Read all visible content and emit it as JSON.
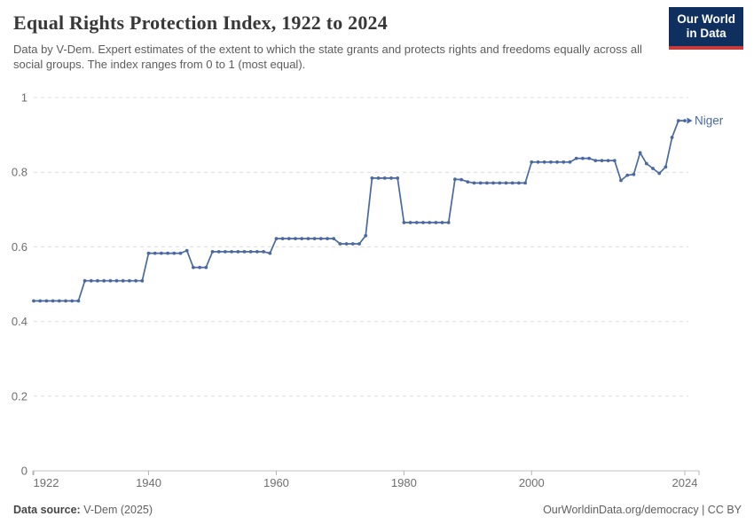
{
  "header": {
    "title": "Equal Rights Protection Index, 1922 to 2024",
    "subtitle": "Data by V-Dem. Expert estimates of the extent to which the state grants and protects rights and freedoms equally across all social groups. The index ranges from 0 to 1 (most equal).",
    "logo": {
      "line1": "Our World",
      "line2": "in Data"
    }
  },
  "footer": {
    "source_label": "Data source:",
    "source_value": " V-Dem (2025)",
    "credit": "OurWorldinData.org/democracy | CC BY"
  },
  "colors": {
    "line": "#4a69a2",
    "grid": "#dedede",
    "axis": "#c2c2c2",
    "tick": "#b5b5b5",
    "tick_label": "#6e6e6e",
    "logo_bg": "#0f2f5f",
    "logo_bar": "#c93a3a"
  },
  "chart_data": {
    "type": "line",
    "title": "Equal Rights Protection Index, 1922 to 2024",
    "xlabel": "",
    "ylabel": "",
    "xlim": [
      1922,
      2024
    ],
    "ylim": [
      0,
      1
    ],
    "xticks": [
      1922,
      1940,
      1960,
      1980,
      2000,
      2024
    ],
    "yticks": [
      0,
      0.2,
      0.4,
      0.6,
      0.8,
      1
    ],
    "grid": "horizontal-dashed",
    "legend_position": "end-of-line-label",
    "x": [
      1922,
      1923,
      1924,
      1925,
      1926,
      1927,
      1928,
      1929,
      1930,
      1931,
      1932,
      1933,
      1934,
      1935,
      1936,
      1937,
      1938,
      1939,
      1940,
      1941,
      1942,
      1943,
      1944,
      1945,
      1946,
      1947,
      1948,
      1949,
      1950,
      1951,
      1952,
      1953,
      1954,
      1955,
      1956,
      1957,
      1958,
      1959,
      1960,
      1961,
      1962,
      1963,
      1964,
      1965,
      1966,
      1967,
      1968,
      1969,
      1970,
      1971,
      1972,
      1973,
      1974,
      1975,
      1976,
      1977,
      1978,
      1979,
      1980,
      1981,
      1982,
      1983,
      1984,
      1985,
      1986,
      1987,
      1988,
      1989,
      1990,
      1991,
      1992,
      1993,
      1994,
      1995,
      1996,
      1997,
      1998,
      1999,
      2000,
      2001,
      2002,
      2003,
      2004,
      2005,
      2006,
      2007,
      2008,
      2009,
      2010,
      2011,
      2012,
      2013,
      2014,
      2015,
      2016,
      2017,
      2018,
      2019,
      2020,
      2021,
      2022,
      2023,
      2024
    ],
    "series": [
      {
        "name": "Niger",
        "color": "#4a69a2",
        "values": [
          0.455,
          0.455,
          0.455,
          0.455,
          0.455,
          0.455,
          0.455,
          0.455,
          0.509,
          0.509,
          0.509,
          0.509,
          0.509,
          0.509,
          0.509,
          0.509,
          0.509,
          0.509,
          0.583,
          0.583,
          0.583,
          0.583,
          0.583,
          0.583,
          0.59,
          0.545,
          0.545,
          0.545,
          0.587,
          0.587,
          0.587,
          0.587,
          0.587,
          0.587,
          0.587,
          0.587,
          0.587,
          0.583,
          0.622,
          0.622,
          0.622,
          0.622,
          0.622,
          0.622,
          0.622,
          0.622,
          0.622,
          0.622,
          0.608,
          0.608,
          0.608,
          0.608,
          0.63,
          0.784,
          0.784,
          0.784,
          0.784,
          0.784,
          0.665,
          0.665,
          0.665,
          0.665,
          0.665,
          0.665,
          0.665,
          0.665,
          0.781,
          0.78,
          0.774,
          0.771,
          0.771,
          0.771,
          0.771,
          0.771,
          0.771,
          0.771,
          0.771,
          0.771,
          0.827,
          0.827,
          0.827,
          0.827,
          0.827,
          0.827,
          0.827,
          0.837,
          0.837,
          0.837,
          0.831,
          0.831,
          0.831,
          0.831,
          0.778,
          0.792,
          0.794,
          0.852,
          0.823,
          0.81,
          0.797,
          0.814,
          0.893,
          0.938,
          0.938
        ]
      }
    ]
  }
}
